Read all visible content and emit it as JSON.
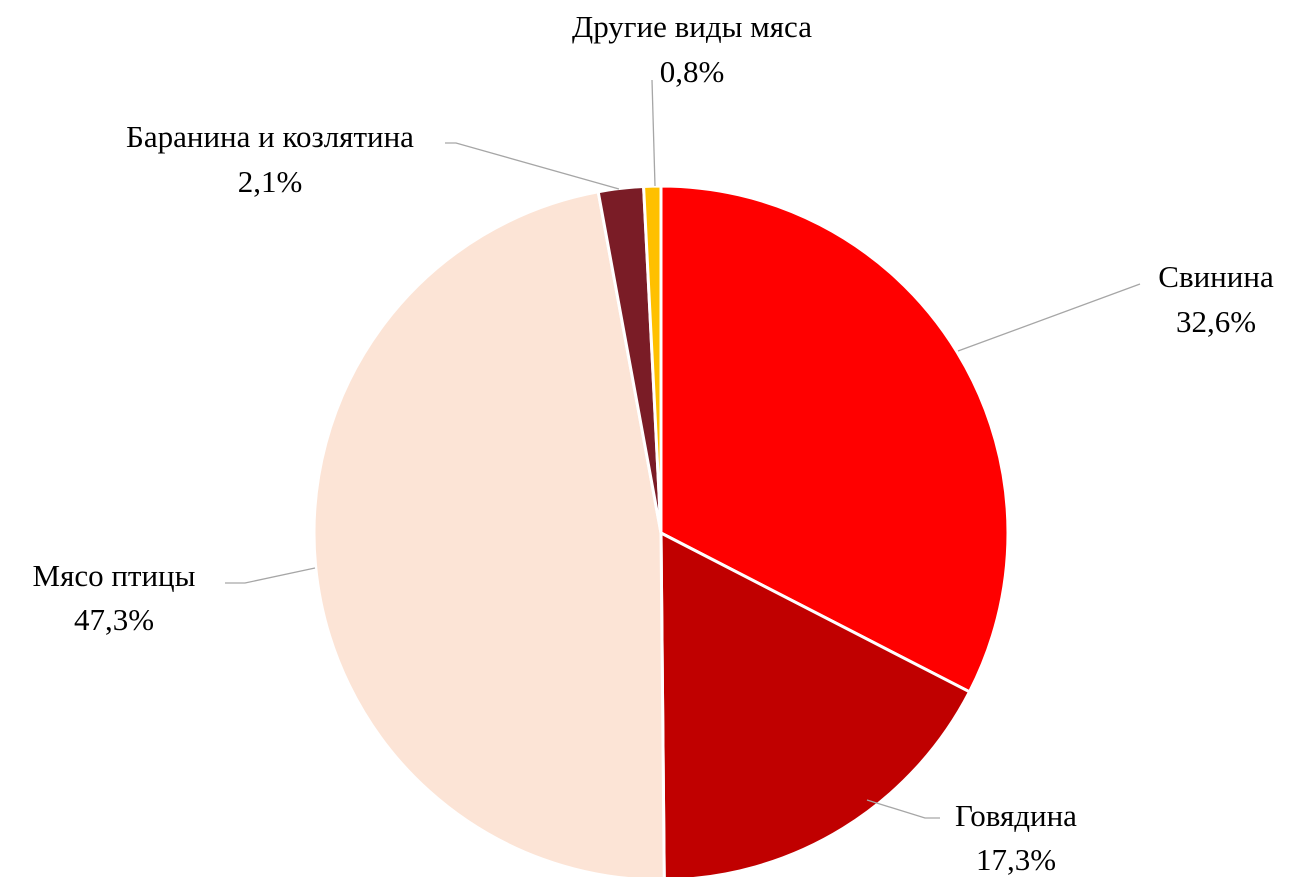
{
  "chart_data": {
    "type": "pie",
    "title": "",
    "start_angle_deg": 0,
    "direction": "clockwise",
    "slices": [
      {
        "label": "Свинина",
        "value": 32.6,
        "value_label": "32,6%",
        "color": "#ff0000"
      },
      {
        "label": "Говядина",
        "value": 17.3,
        "value_label": "17,3%",
        "color": "#c00000"
      },
      {
        "label": "Мясо птицы",
        "value": 47.3,
        "value_label": "47,3%",
        "color": "#fce4d6"
      },
      {
        "label": "Баранина и козлятина",
        "value": 2.1,
        "value_label": "2,1%",
        "color": "#7a1c26"
      },
      {
        "label": "Другие виды мяса",
        "value": 0.8,
        "value_label": "0,8%",
        "color": "#ffc000"
      }
    ],
    "legend": "none",
    "data_labels": "outside-with-leader-lines"
  }
}
